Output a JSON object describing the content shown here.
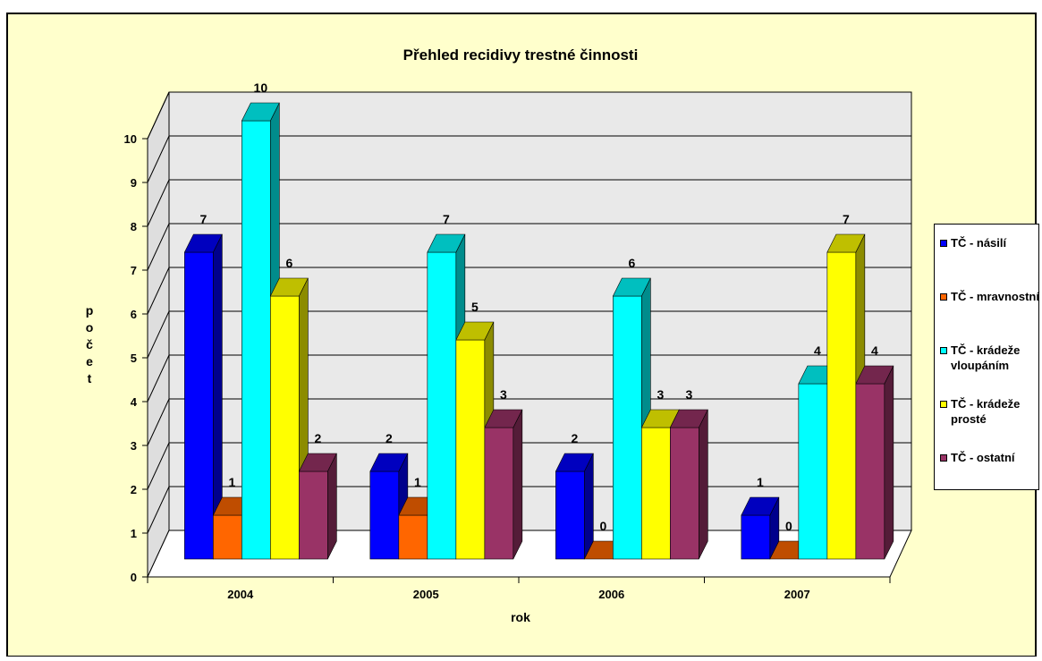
{
  "chart_data": {
    "type": "bar",
    "title": "Přehled recidivy trestné činnosti",
    "xlabel": "rok",
    "ylabel": "počet",
    "categories": [
      "2004",
      "2005",
      "2006",
      "2007"
    ],
    "ylim": [
      0,
      10
    ],
    "yticks": [
      "0",
      "1",
      "2",
      "3",
      "4",
      "5",
      "6",
      "7",
      "8",
      "9",
      "10"
    ],
    "grid": true,
    "legend_position": "right",
    "series": [
      {
        "name": "TČ - násilí",
        "values": [
          7,
          2,
          2,
          1
        ],
        "color": "#0000ff"
      },
      {
        "name": "TČ - mravnostní",
        "values": [
          1,
          1,
          0,
          0
        ],
        "color": "#ff6600"
      },
      {
        "name": "TČ - krádeže vloupáním",
        "values": [
          10,
          7,
          6,
          4
        ],
        "color": "#00ffff"
      },
      {
        "name": "TČ - krádeže prosté",
        "values": [
          6,
          5,
          3,
          7
        ],
        "color": "#ffff00"
      },
      {
        "name": "TČ - ostatní",
        "values": [
          2,
          3,
          3,
          4
        ],
        "color": "#993366"
      }
    ]
  },
  "colors": {
    "chart_area": "#ffffcc",
    "plot_back_wall": "#e9e9e9",
    "plot_side_wall": "#dedede",
    "plot_floor": "#ffffff"
  }
}
